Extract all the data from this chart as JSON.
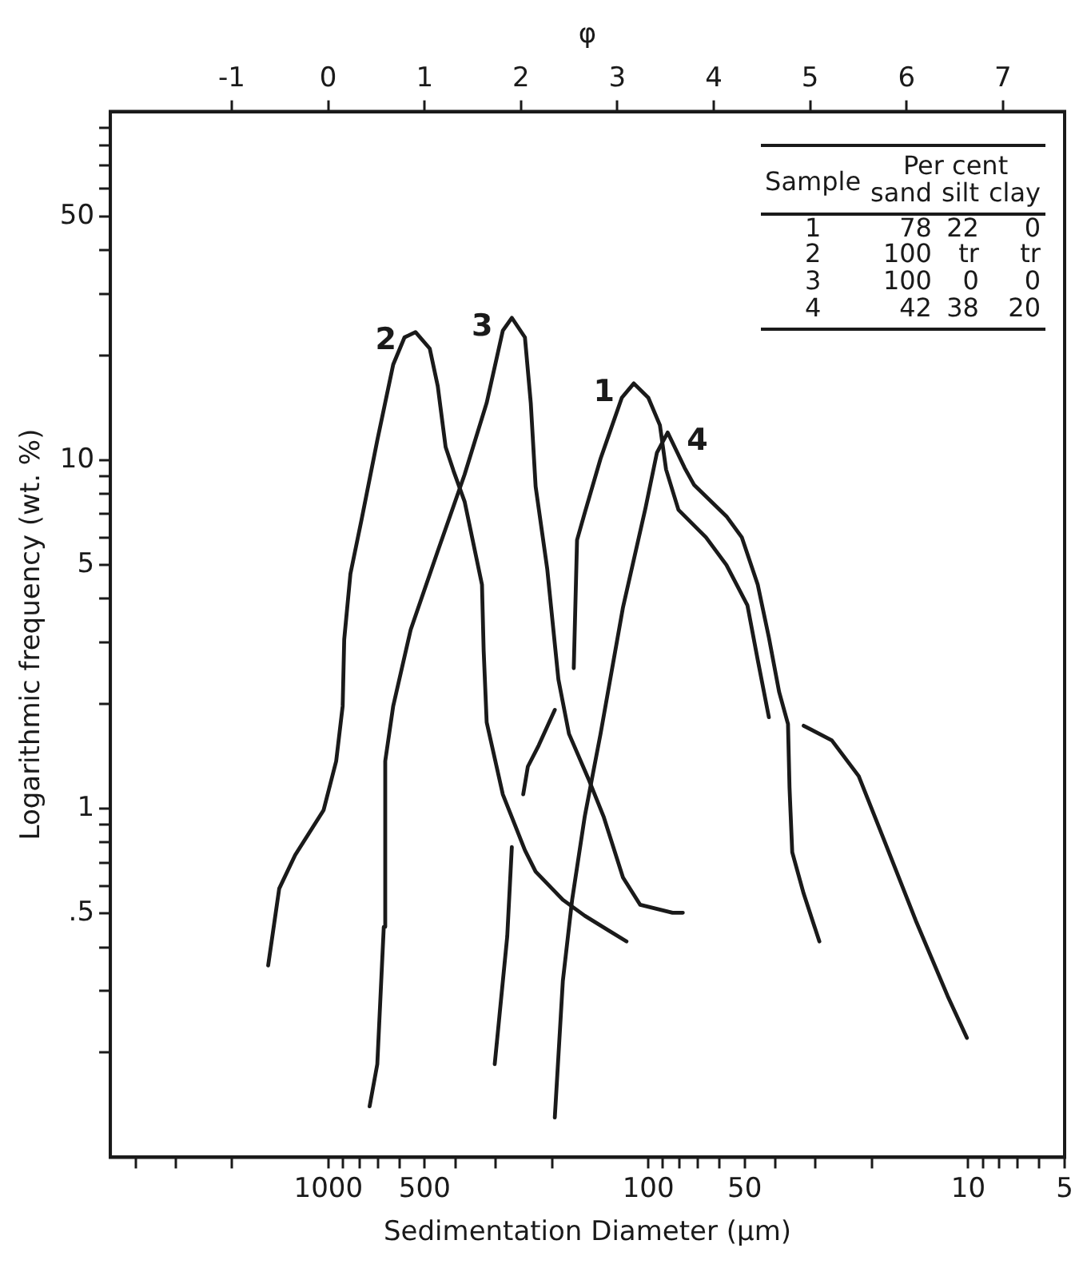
{
  "chart_data": {
    "type": "line",
    "xlabel": "Sedimentation Diameter (µm)",
    "ylabel": "Logarithmic frequency (wt. %)",
    "x2label": "φ",
    "log": "xy",
    "grid": false,
    "legend": "top right",
    "marker": "none",
    "line_style": "solid",
    "xlim": [
      4800,
      5
    ],
    "ylim": [
      0.1,
      100
    ],
    "x2lim": [
      -2.26,
      7.64
    ],
    "xticks": [
      {
        "value": 4000,
        "label": null
      },
      {
        "value": 3000,
        "label": null
      },
      {
        "value": 2000,
        "label": null
      },
      1000,
      {
        "value": 900,
        "label": null
      },
      {
        "value": 800,
        "label": null
      },
      {
        "value": 700,
        "label": null
      },
      {
        "value": 600,
        "label": null
      },
      500,
      {
        "value": 400,
        "label": null
      },
      {
        "value": 300,
        "label": null
      },
      {
        "value": 200,
        "label": null
      },
      100,
      {
        "value": 90,
        "label": null
      },
      {
        "value": 80,
        "label": null
      },
      {
        "value": 70,
        "label": null
      },
      {
        "value": 60,
        "label": null
      },
      50,
      {
        "value": 40,
        "label": null
      },
      {
        "value": 30,
        "label": null
      },
      {
        "value": 20,
        "label": null
      },
      10,
      {
        "value": 9,
        "label": null
      },
      {
        "value": 8,
        "label": null
      },
      {
        "value": 7,
        "label": null
      },
      {
        "value": 6,
        "label": null
      },
      5
    ],
    "x2ticks": [
      -1,
      0,
      1,
      2,
      3,
      4,
      5,
      6,
      7
    ],
    "yticks": [
      {
        "value": 0.2,
        "label": null
      },
      {
        "value": 0.3,
        "label": null
      },
      {
        "value": 0.4,
        "label": null
      },
      {
        "value": 0.5,
        "label": ".5"
      },
      {
        "value": 0.6,
        "label": null
      },
      {
        "value": 0.7,
        "label": null
      },
      {
        "value": 0.8,
        "label": null
      },
      {
        "value": 0.9,
        "label": null
      },
      1,
      {
        "value": 2,
        "label": null
      },
      {
        "value": 3,
        "label": null
      },
      {
        "value": 4,
        "label": null
      },
      5,
      {
        "value": 6,
        "label": null
      },
      {
        "value": 7,
        "label": null
      },
      {
        "value": 8,
        "label": null
      },
      {
        "value": 9,
        "label": null
      },
      10,
      {
        "value": 20,
        "label": null
      },
      {
        "value": 30,
        "label": null
      },
      {
        "value": 40,
        "label": null
      },
      50,
      {
        "value": 60,
        "label": null
      },
      {
        "value": 70,
        "label": null
      },
      {
        "value": 80,
        "label": null
      },
      {
        "value": 90,
        "label": null
      }
    ],
    "series": [
      {
        "name": "1",
        "color": "#1a1a1a",
        "x": [
          171,
          167,
          158,
          141,
          121,
          111,
          100,
          92,
          88,
          80.5,
          66,
          57,
          49,
          45.5,
          42
        ],
        "values": [
          2.53,
          5.9,
          7.06,
          10.1,
          15.1,
          16.6,
          15.1,
          12.6,
          9.4,
          7.2,
          6.0,
          5.0,
          3.83,
          2.67,
          1.83
        ]
      },
      {
        "name": "2",
        "color": "#1a1a1a",
        "x": [
          1542,
          1424,
          1270,
          1035,
          945,
          902,
          892,
          853,
          787,
          703,
          627,
          578,
          534,
          482,
          455,
          430,
          406,
          375,
          331,
          327,
          320,
          285,
          243,
          225,
          185,
          158,
          117
        ],
        "values": [
          0.355,
          0.59,
          0.736,
          0.99,
          1.37,
          1.97,
          3.06,
          4.72,
          6.76,
          11.4,
          18.8,
          22.5,
          23.3,
          20.9,
          16.3,
          10.9,
          9.3,
          7.6,
          4.39,
          2.84,
          1.77,
          1.1,
          0.76,
          0.66,
          0.548,
          0.493,
          0.416
        ]
      },
      {
        "name": "3",
        "color": "#1a1a1a",
        "x": [
          743,
          703,
          671,
          664,
          627,
          553,
          455,
          375,
          320,
          285,
          267,
          243,
          233,
          225,
          207,
          191,
          177,
          154,
          138,
          120,
          106,
          84,
          78
        ],
        "values": [
          0.14,
          0.185,
          0.458,
          1.37,
          1.97,
          3.26,
          5.48,
          9.1,
          14.6,
          23.5,
          25.6,
          22.5,
          14.6,
          8.4,
          4.88,
          2.35,
          1.64,
          1.22,
          0.95,
          0.635,
          0.53,
          0.503,
          0.503
        ]
      },
      {
        "name": "4",
        "color": "#1a1a1a",
        "x": [
          196,
          185,
          173,
          158,
          141,
          120,
          102,
          94,
          87,
          77,
          72,
          57,
          51,
          45.5,
          42,
          39,
          36.6,
          36.2,
          35.5,
          32.7,
          29.2
        ],
        "values": [
          0.13,
          0.32,
          0.548,
          0.95,
          1.64,
          3.78,
          7.3,
          10.5,
          12.0,
          9.5,
          8.5,
          6.9,
          6.0,
          4.39,
          3.1,
          2.16,
          1.75,
          1.15,
          0.75,
          0.571,
          0.416
        ]
      },
      {
        "color": "#1a1a1a",
        "x": [
          32.7,
          26.7,
          22,
          18.3,
          14.6,
          11.6,
          10.1
        ],
        "values": [
          1.73,
          1.57,
          1.24,
          0.81,
          0.478,
          0.29,
          0.22
        ]
      },
      {
        "color": "#1a1a1a",
        "x": [
          196,
          220,
          238,
          246
        ],
        "values": [
          1.92,
          1.52,
          1.32,
          1.1
        ]
      },
      {
        "color": "#1a1a1a",
        "x": [
          267,
          276,
          302
        ],
        "values": [
          0.776,
          0.43,
          0.185
        ]
      }
    ],
    "annotations": [
      "Sample",
      "Per cent",
      "sand",
      "silt",
      "clay",
      "1",
      "78",
      "22",
      "0",
      "2",
      "100",
      "tr",
      "tr",
      "3",
      "100",
      "0",
      "0",
      "4",
      "42",
      "38",
      "20"
    ]
  }
}
